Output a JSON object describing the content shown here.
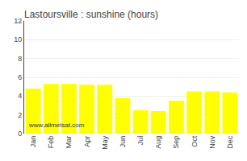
{
  "chart_data": {
    "type": "bar",
    "title": "Lastoursville : sunshine (hours)",
    "categories": [
      "Jan",
      "Feb",
      "Mar",
      "Apr",
      "May",
      "Jun",
      "Jul",
      "Aug",
      "Sep",
      "Oct",
      "Nov",
      "Dec"
    ],
    "values": [
      4.8,
      5.3,
      5.3,
      5.2,
      5.2,
      3.8,
      2.5,
      2.4,
      3.5,
      4.5,
      4.5,
      4.4
    ],
    "color": "#ffff00",
    "ylim": [
      0,
      12
    ],
    "yticks": [
      0,
      2,
      4,
      6,
      8,
      10,
      12
    ],
    "grid": true,
    "annotations": [
      "www.allmetsat.com"
    ]
  }
}
